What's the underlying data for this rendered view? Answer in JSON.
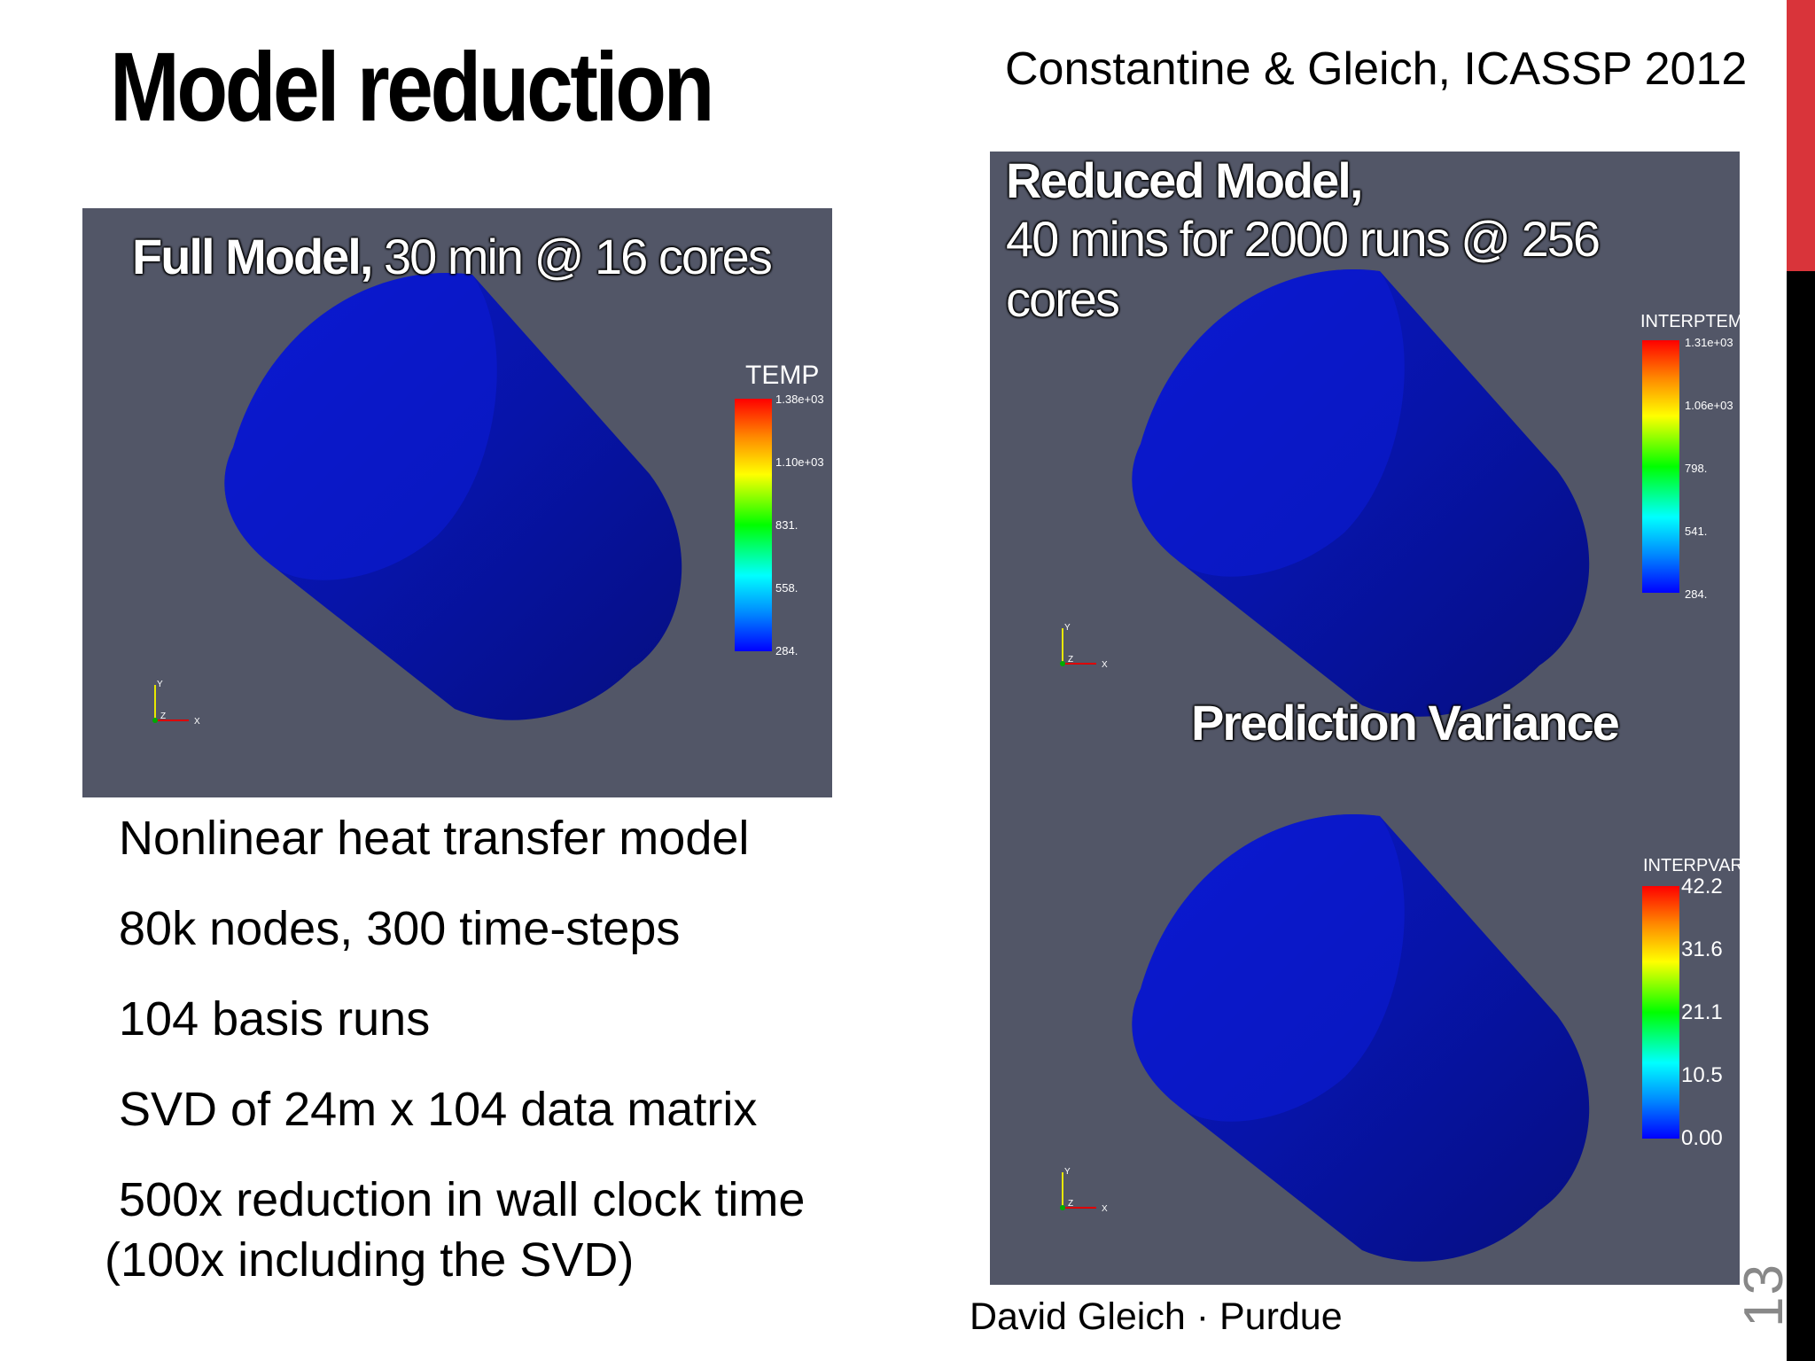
{
  "slide": {
    "title": "Model reduction",
    "citation": "Constantine & Gleich, ICASSP 2012",
    "footer": "David Gleich · Purdue",
    "page_number": "13",
    "accent_colors": {
      "red": "#d9343a",
      "black": "#000000"
    }
  },
  "panels": {
    "full": {
      "label_bold": "Full Model,",
      "label_rest": " 30 min @ 16 cores",
      "colorbar": {
        "title": "TEMP",
        "ticks": [
          "1.38e+03",
          "1.10e+03",
          "831.",
          "558.",
          "284."
        ]
      },
      "axes": {
        "y": "Y",
        "z": "Z",
        "x": "X"
      }
    },
    "reduced": {
      "label_line1": "Reduced Model,",
      "label_line2": "40 mins for 2000 runs @ 256",
      "label_line3": "cores",
      "colorbar": {
        "title": "INTERPTEMP",
        "ticks": [
          "1.31e+03",
          "1.06e+03",
          "798.",
          "541.",
          "284."
        ]
      },
      "axes": {
        "y": "Y",
        "z": "Z",
        "x": "X"
      }
    },
    "variance": {
      "label": "Prediction Variance",
      "colorbar": {
        "title": "INTERPVAR",
        "ticks": [
          "42.2",
          "31.6",
          "21.1",
          "10.5",
          "0.00"
        ]
      },
      "axes": {
        "y": "Y",
        "z": "Z",
        "x": "X"
      }
    }
  },
  "bullets": [
    "Nonlinear heat transfer model",
    "80k nodes, 300 time-steps",
    "104 basis runs",
    "SVD of 24m x 104 data matrix",
    "500x reduction in wall clock time",
    "(100x including the SVD)"
  ]
}
